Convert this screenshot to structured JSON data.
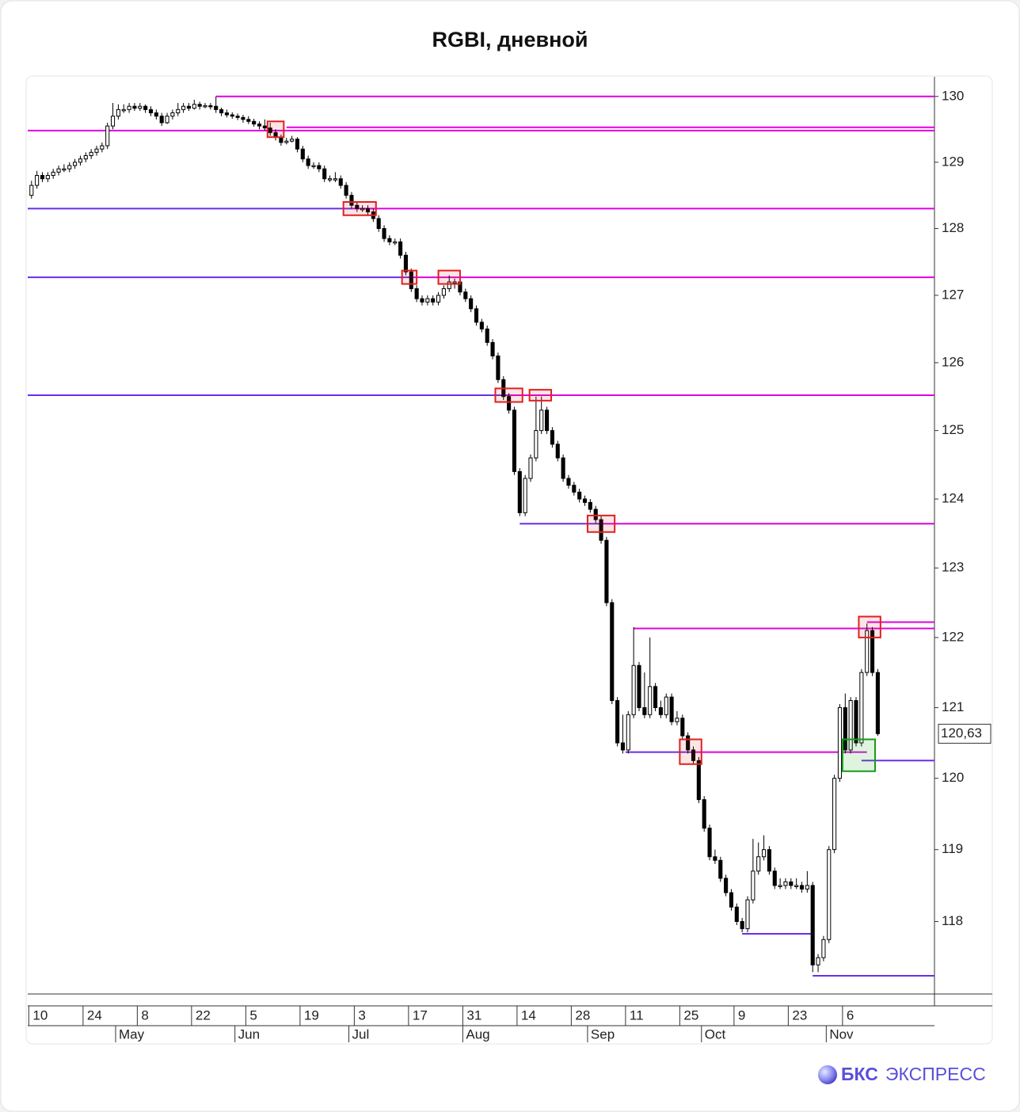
{
  "chart_data": {
    "type": "candlestick",
    "title": "RGBI, дневной",
    "log_scale": true,
    "ylim": [
      117.0,
      130.3
    ],
    "yticks": [
      118,
      119,
      120,
      121,
      122,
      123,
      124,
      125,
      126,
      127,
      128,
      129,
      130
    ],
    "xlim": [
      -0.7,
      166.45
    ],
    "xticks": [
      {
        "value": 0,
        "label": "10"
      },
      {
        "value": 10,
        "label": "24"
      },
      {
        "value": 20,
        "label": "8"
      },
      {
        "value": 30,
        "label": "22"
      },
      {
        "value": 40,
        "label": "5"
      },
      {
        "value": 50,
        "label": "19"
      },
      {
        "value": 60,
        "label": "3"
      },
      {
        "value": 70,
        "label": "17"
      },
      {
        "value": 80,
        "label": "31"
      },
      {
        "value": 90,
        "label": "14"
      },
      {
        "value": 100,
        "label": "28"
      },
      {
        "value": 110,
        "label": "11"
      },
      {
        "value": 120,
        "label": "25"
      },
      {
        "value": 130,
        "label": "9"
      },
      {
        "value": 140,
        "label": "23"
      },
      {
        "value": 150,
        "label": "6"
      }
    ],
    "month_ticks": [
      {
        "value": 16,
        "label": "May"
      },
      {
        "value": 38,
        "label": "Jun"
      },
      {
        "value": 59,
        "label": "Jul"
      },
      {
        "value": 80,
        "label": "Aug"
      },
      {
        "value": 103,
        "label": "Sep"
      },
      {
        "value": 124,
        "label": "Oct"
      },
      {
        "value": 147,
        "label": "Nov"
      }
    ],
    "up_color": "#ffffff",
    "down_color": "#000000",
    "candles": [
      [
        128.5,
        128.72,
        128.45,
        128.65
      ],
      [
        128.65,
        128.87,
        128.6,
        128.8
      ],
      [
        128.8,
        128.85,
        128.7,
        128.75
      ],
      [
        128.75,
        128.85,
        128.7,
        128.8
      ],
      [
        128.8,
        128.9,
        128.75,
        128.85
      ],
      [
        128.85,
        128.95,
        128.8,
        128.9
      ],
      [
        128.9,
        128.97,
        128.85,
        128.9
      ],
      [
        128.9,
        129.0,
        128.85,
        128.95
      ],
      [
        128.95,
        129.05,
        128.9,
        129.0
      ],
      [
        129.0,
        129.1,
        128.95,
        129.05
      ],
      [
        129.05,
        129.15,
        129.0,
        129.1
      ],
      [
        129.1,
        129.2,
        129.05,
        129.15
      ],
      [
        129.15,
        129.25,
        129.1,
        129.2
      ],
      [
        129.2,
        129.3,
        129.15,
        129.25
      ],
      [
        129.25,
        129.6,
        129.2,
        129.55
      ],
      [
        129.55,
        129.9,
        129.5,
        129.7
      ],
      [
        129.7,
        129.88,
        129.65,
        129.8
      ],
      [
        129.8,
        129.88,
        129.75,
        129.8
      ],
      [
        129.8,
        129.9,
        129.75,
        129.85
      ],
      [
        129.85,
        129.9,
        129.78,
        129.82
      ],
      [
        129.82,
        129.9,
        129.78,
        129.85
      ],
      [
        129.85,
        129.88,
        129.75,
        129.8
      ],
      [
        129.8,
        129.85,
        129.7,
        129.75
      ],
      [
        129.75,
        129.8,
        129.65,
        129.7
      ],
      [
        129.7,
        129.75,
        129.55,
        129.6
      ],
      [
        129.6,
        129.75,
        129.58,
        129.7
      ],
      [
        129.7,
        129.8,
        129.65,
        129.75
      ],
      [
        129.75,
        129.9,
        129.7,
        129.8
      ],
      [
        129.8,
        129.9,
        129.75,
        129.85
      ],
      [
        129.85,
        129.9,
        129.78,
        129.82
      ],
      [
        129.82,
        129.95,
        129.8,
        129.88
      ],
      [
        129.88,
        129.92,
        129.8,
        129.85
      ],
      [
        129.85,
        129.9,
        129.82,
        129.86
      ],
      [
        129.86,
        129.9,
        129.8,
        129.85
      ],
      [
        129.85,
        130.0,
        129.75,
        129.8
      ],
      [
        129.8,
        129.83,
        129.7,
        129.75
      ],
      [
        129.75,
        129.8,
        129.68,
        129.72
      ],
      [
        129.72,
        129.76,
        129.66,
        129.7
      ],
      [
        129.7,
        129.74,
        129.64,
        129.68
      ],
      [
        129.68,
        129.72,
        129.6,
        129.65
      ],
      [
        129.65,
        129.7,
        129.58,
        129.62
      ],
      [
        129.62,
        129.66,
        129.54,
        129.58
      ],
      [
        129.58,
        129.62,
        129.5,
        129.55
      ],
      [
        129.55,
        129.65,
        129.48,
        129.52
      ],
      [
        129.52,
        129.6,
        129.4,
        129.45
      ],
      [
        129.45,
        129.5,
        129.33,
        129.38
      ],
      [
        129.38,
        129.42,
        129.25,
        129.3
      ],
      [
        129.3,
        129.37,
        129.27,
        129.32
      ],
      [
        129.32,
        129.4,
        129.3,
        129.35
      ],
      [
        129.35,
        129.38,
        129.15,
        129.2
      ],
      [
        129.2,
        129.25,
        129.0,
        129.05
      ],
      [
        129.05,
        129.1,
        128.9,
        128.95
      ],
      [
        128.95,
        129.0,
        128.9,
        128.95
      ],
      [
        128.95,
        129.0,
        128.85,
        128.9
      ],
      [
        128.9,
        128.95,
        128.7,
        128.75
      ],
      [
        128.75,
        128.8,
        128.7,
        128.75
      ],
      [
        128.75,
        128.85,
        128.7,
        128.75
      ],
      [
        128.75,
        128.8,
        128.6,
        128.65
      ],
      [
        128.65,
        128.7,
        128.45,
        128.5
      ],
      [
        128.5,
        128.55,
        128.3,
        128.35
      ],
      [
        128.35,
        128.4,
        128.25,
        128.3
      ],
      [
        128.3,
        128.35,
        128.25,
        128.3
      ],
      [
        128.3,
        128.35,
        128.2,
        128.25
      ],
      [
        128.25,
        128.3,
        128.1,
        128.15
      ],
      [
        128.15,
        128.2,
        127.95,
        128.0
      ],
      [
        128.0,
        128.05,
        127.8,
        127.85
      ],
      [
        127.85,
        127.9,
        127.75,
        127.8
      ],
      [
        127.8,
        127.85,
        127.75,
        127.8
      ],
      [
        127.8,
        127.85,
        127.55,
        127.6
      ],
      [
        127.6,
        127.65,
        127.3,
        127.35
      ],
      [
        127.35,
        127.4,
        127.05,
        127.1
      ],
      [
        127.1,
        127.15,
        126.9,
        126.95
      ],
      [
        126.95,
        127.0,
        126.85,
        126.9
      ],
      [
        126.9,
        127.0,
        126.85,
        126.95
      ],
      [
        126.95,
        127.0,
        126.85,
        126.9
      ],
      [
        126.9,
        127.05,
        126.85,
        127.0
      ],
      [
        127.0,
        127.15,
        126.95,
        127.1
      ],
      [
        127.1,
        127.3,
        127.05,
        127.2
      ],
      [
        127.2,
        127.25,
        127.1,
        127.2
      ],
      [
        127.2,
        127.25,
        127.0,
        127.05
      ],
      [
        127.05,
        127.1,
        126.9,
        126.95
      ],
      [
        126.95,
        127.0,
        126.75,
        126.8
      ],
      [
        126.8,
        126.85,
        126.55,
        126.6
      ],
      [
        126.6,
        126.65,
        126.45,
        126.5
      ],
      [
        126.5,
        126.55,
        126.25,
        126.3
      ],
      [
        126.3,
        126.35,
        126.05,
        126.1
      ],
      [
        126.1,
        126.15,
        125.7,
        125.75
      ],
      [
        125.75,
        125.8,
        125.45,
        125.5
      ],
      [
        125.5,
        125.55,
        125.25,
        125.3
      ],
      [
        125.3,
        125.35,
        124.35,
        124.4
      ],
      [
        124.4,
        124.45,
        123.75,
        123.8
      ],
      [
        123.8,
        124.35,
        123.75,
        124.3
      ],
      [
        124.3,
        124.65,
        124.25,
        124.6
      ],
      [
        124.6,
        125.5,
        124.55,
        125.0
      ],
      [
        125.0,
        125.5,
        124.95,
        125.3
      ],
      [
        125.3,
        125.35,
        124.95,
        125.0
      ],
      [
        125.0,
        125.05,
        124.75,
        124.8
      ],
      [
        124.8,
        124.85,
        124.55,
        124.6
      ],
      [
        124.6,
        124.65,
        124.25,
        124.3
      ],
      [
        124.3,
        124.35,
        124.15,
        124.2
      ],
      [
        124.2,
        124.25,
        124.05,
        124.1
      ],
      [
        124.1,
        124.15,
        123.95,
        124.0
      ],
      [
        124.0,
        124.05,
        123.9,
        123.95
      ],
      [
        123.95,
        124.0,
        123.8,
        123.85
      ],
      [
        123.85,
        123.9,
        123.65,
        123.7
      ],
      [
        123.7,
        123.75,
        123.35,
        123.4
      ],
      [
        123.4,
        123.45,
        122.45,
        122.5
      ],
      [
        122.5,
        122.55,
        121.05,
        121.1
      ],
      [
        121.1,
        121.15,
        120.45,
        120.5
      ],
      [
        120.5,
        120.9,
        120.35,
        120.4
      ],
      [
        120.4,
        120.95,
        120.35,
        120.9
      ],
      [
        120.9,
        122.15,
        120.85,
        121.6
      ],
      [
        121.6,
        121.65,
        120.95,
        121.0
      ],
      [
        121.0,
        121.5,
        120.85,
        120.9
      ],
      [
        120.9,
        122.0,
        120.85,
        121.3
      ],
      [
        121.3,
        121.35,
        120.95,
        121.0
      ],
      [
        121.0,
        121.1,
        120.85,
        120.9
      ],
      [
        120.9,
        121.2,
        120.85,
        121.15
      ],
      [
        121.15,
        121.2,
        120.75,
        120.8
      ],
      [
        120.8,
        120.95,
        120.75,
        120.85
      ],
      [
        120.85,
        120.9,
        120.55,
        120.6
      ],
      [
        120.6,
        120.65,
        120.35,
        120.4
      ],
      [
        120.4,
        120.45,
        120.2,
        120.25
      ],
      [
        120.25,
        120.3,
        119.65,
        119.7
      ],
      [
        119.7,
        119.75,
        119.25,
        119.3
      ],
      [
        119.3,
        119.35,
        118.85,
        118.9
      ],
      [
        118.9,
        119.0,
        118.8,
        118.85
      ],
      [
        118.85,
        118.9,
        118.55,
        118.6
      ],
      [
        118.6,
        118.65,
        118.35,
        118.4
      ],
      [
        118.4,
        118.45,
        118.15,
        118.2
      ],
      [
        118.2,
        118.25,
        117.95,
        118.0
      ],
      [
        118.0,
        118.05,
        117.85,
        117.9
      ],
      [
        117.9,
        118.35,
        117.85,
        118.3
      ],
      [
        118.3,
        119.15,
        118.25,
        118.7
      ],
      [
        118.7,
        119.1,
        118.65,
        118.9
      ],
      [
        118.9,
        119.2,
        118.85,
        119.0
      ],
      [
        119.0,
        119.05,
        118.65,
        118.7
      ],
      [
        118.7,
        118.75,
        118.45,
        118.5
      ],
      [
        118.5,
        118.6,
        118.45,
        118.5
      ],
      [
        118.5,
        118.6,
        118.45,
        118.55
      ],
      [
        118.55,
        118.6,
        118.45,
        118.5
      ],
      [
        118.5,
        118.6,
        118.45,
        118.5
      ],
      [
        118.5,
        118.55,
        118.4,
        118.45
      ],
      [
        118.45,
        118.7,
        118.4,
        118.5
      ],
      [
        118.5,
        118.55,
        117.3,
        117.4
      ],
      [
        117.4,
        117.55,
        117.3,
        117.5
      ],
      [
        117.5,
        117.8,
        117.45,
        117.75
      ],
      [
        117.75,
        119.05,
        117.7,
        119.0
      ],
      [
        119.0,
        120.05,
        118.95,
        120.0
      ],
      [
        120.0,
        121.05,
        119.95,
        121.0
      ],
      [
        121.0,
        121.2,
        120.35,
        120.4
      ],
      [
        120.4,
        121.15,
        120.35,
        121.1
      ],
      [
        121.1,
        121.15,
        120.45,
        120.5
      ],
      [
        120.5,
        121.55,
        120.45,
        121.5
      ],
      [
        121.5,
        122.2,
        121.45,
        122.1
      ],
      [
        122.1,
        122.15,
        121.45,
        121.5
      ],
      [
        121.5,
        121.55,
        120.6,
        120.63
      ]
    ],
    "levels": [
      {
        "value": 130.0,
        "from": 34,
        "to": 166.45,
        "color": "#e000e0"
      },
      {
        "value": 129.48,
        "from": -0.7,
        "to": 166.45,
        "color": "#e000e0"
      },
      {
        "value": 129.53,
        "from": 47,
        "to": 166.45,
        "color": "#e000e0"
      },
      {
        "value": 128.3,
        "from": -0.7,
        "to": 59,
        "color": "#6a2ee8"
      },
      {
        "value": 128.3,
        "from": 59,
        "to": 166.45,
        "color": "#e000e0"
      },
      {
        "value": 127.27,
        "from": -0.7,
        "to": 70,
        "color": "#6a2ee8"
      },
      {
        "value": 127.27,
        "from": 70,
        "to": 166.45,
        "color": "#e000e0"
      },
      {
        "value": 125.52,
        "from": -0.7,
        "to": 88,
        "color": "#6a2ee8"
      },
      {
        "value": 125.52,
        "from": 88,
        "to": 166.45,
        "color": "#e000e0"
      },
      {
        "value": 123.64,
        "from": 90,
        "to": 105,
        "color": "#6a2ee8"
      },
      {
        "value": 123.64,
        "from": 105,
        "to": 166.45,
        "color": "#e000e0"
      },
      {
        "value": 122.13,
        "from": 111,
        "to": 166.45,
        "color": "#e000e0"
      },
      {
        "value": 122.22,
        "from": 154,
        "to": 166.45,
        "color": "#e000e0"
      },
      {
        "value": 120.37,
        "from": 109.5,
        "to": 122,
        "color": "#6a2ee8"
      },
      {
        "value": 120.37,
        "from": 122,
        "to": 154,
        "color": "#e000e0"
      },
      {
        "value": 120.25,
        "from": 153,
        "to": 166.45,
        "color": "#6a2ee8"
      },
      {
        "value": 117.83,
        "from": 131,
        "to": 144,
        "color": "#6a2ee8"
      },
      {
        "value": 117.25,
        "from": 144,
        "to": 166.45,
        "color": "#6a2ee8"
      }
    ],
    "boxes": [
      {
        "from": 43.5,
        "to": 46.5,
        "low": 129.38,
        "high": 129.62,
        "color": "#e02020"
      },
      {
        "from": 57.5,
        "to": 63.5,
        "low": 128.2,
        "high": 128.4,
        "color": "#e02020"
      },
      {
        "from": 68.3,
        "to": 71,
        "low": 127.17,
        "high": 127.37,
        "color": "#e02020"
      },
      {
        "from": 75,
        "to": 79,
        "low": 127.17,
        "high": 127.37,
        "color": "#e02020"
      },
      {
        "from": 85.5,
        "to": 90.5,
        "low": 125.42,
        "high": 125.62,
        "color": "#e02020"
      },
      {
        "from": 91.8,
        "to": 95.8,
        "low": 125.44,
        "high": 125.6,
        "color": "#e02020"
      },
      {
        "from": 102.5,
        "to": 107.5,
        "low": 123.52,
        "high": 123.76,
        "color": "#e02020"
      },
      {
        "from": 119.5,
        "to": 123.5,
        "low": 120.2,
        "high": 120.55,
        "color": "#e02020"
      },
      {
        "from": 152.5,
        "to": 156.5,
        "low": 122.0,
        "high": 122.3,
        "color": "#e02020"
      },
      {
        "from": 149.5,
        "to": 155.5,
        "low": 120.1,
        "high": 120.55,
        "color": "#1a9a1a"
      }
    ],
    "last_price": {
      "value": 120.63,
      "label": "120,63"
    }
  },
  "logo": {
    "brand": "БКС",
    "product": "ЭКСПРЕСС"
  }
}
